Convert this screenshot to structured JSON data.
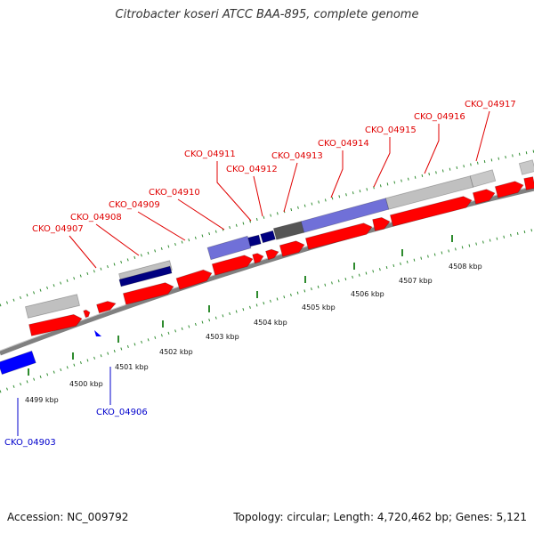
{
  "title": "Citrobacter koseri ATCC BAA-895, complete genome",
  "footer": {
    "accession": "Accession: NC_009792",
    "summary": "Topology: circular; Length: 4,720,462 bp; Genes: 5,121"
  },
  "colors": {
    "forward_gene": "#ff0000",
    "reverse_gene": "#0000ff",
    "tick": "#2e8b2e",
    "backbone": "#808080",
    "label_forward": "#e00000",
    "label_reverse": "#0000cc"
  },
  "map": {
    "ticks": [
      "4499 kbp",
      "4500 kbp",
      "4501 kbp",
      "4502 kbp",
      "4503 kbp",
      "4504 kbp",
      "4505 kbp",
      "4506 kbp",
      "4507 kbp",
      "4508 kbp"
    ],
    "gene_labels": [
      {
        "text": "CKO_04903",
        "strand": "reverse"
      },
      {
        "text": "CKO_04906",
        "strand": "reverse"
      },
      {
        "text": "CKO_04907",
        "strand": "forward"
      },
      {
        "text": "CKO_04908",
        "strand": "forward"
      },
      {
        "text": "CKO_04909",
        "strand": "forward"
      },
      {
        "text": "CKO_04910",
        "strand": "forward"
      },
      {
        "text": "CKO_04911",
        "strand": "forward"
      },
      {
        "text": "CKO_04912",
        "strand": "forward"
      },
      {
        "text": "CKO_04913",
        "strand": "forward"
      },
      {
        "text": "CKO_04914",
        "strand": "forward"
      },
      {
        "text": "CKO_04915",
        "strand": "forward"
      },
      {
        "text": "CKO_04916",
        "strand": "forward"
      },
      {
        "text": "CKO_04917",
        "strand": "forward"
      }
    ]
  }
}
